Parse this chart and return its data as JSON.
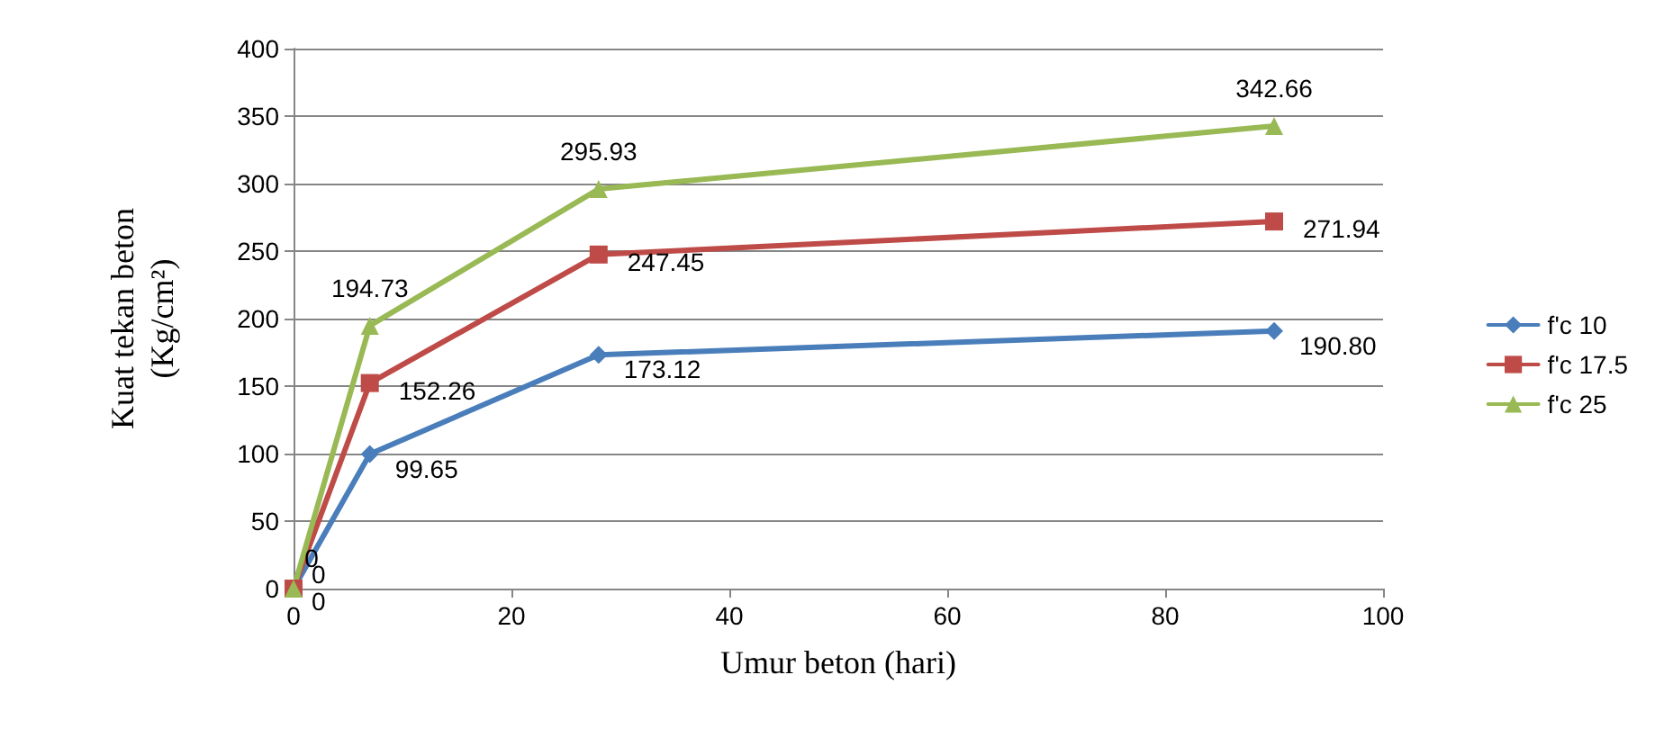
{
  "chart_data": {
    "type": "line",
    "xlabel": "Umur beton (hari)",
    "ylabel": "Kuat tekan beton\n(Kg/cm²)",
    "x": [
      0,
      7,
      28,
      90
    ],
    "xlim": [
      0,
      100
    ],
    "xticks": [
      0,
      20,
      40,
      60,
      80,
      100
    ],
    "ylim": [
      0,
      400
    ],
    "yticks": [
      0,
      50,
      100,
      150,
      200,
      250,
      300,
      350,
      400
    ],
    "grid": "y",
    "legend": "right",
    "line_style": "solid",
    "series": [
      {
        "name": "f'c 10",
        "color": "#4a7ebb",
        "marker": "diamond",
        "values": [
          0,
          99.65,
          173.12,
          190.8
        ],
        "value_labels": [
          "0",
          "99.65",
          "173.12",
          "190.80"
        ]
      },
      {
        "name": "f'c 17.5",
        "color": "#be4b48",
        "marker": "square",
        "values": [
          0,
          152.26,
          247.45,
          271.94
        ],
        "value_labels": [
          "0",
          "152.26",
          "247.45",
          "271.94"
        ]
      },
      {
        "name": "f'c 25",
        "color": "#98b954",
        "marker": "triangle",
        "values": [
          0,
          194.73,
          295.93,
          342.66
        ],
        "value_labels": [
          "0",
          "194.73",
          "295.93",
          "342.66"
        ]
      }
    ]
  }
}
